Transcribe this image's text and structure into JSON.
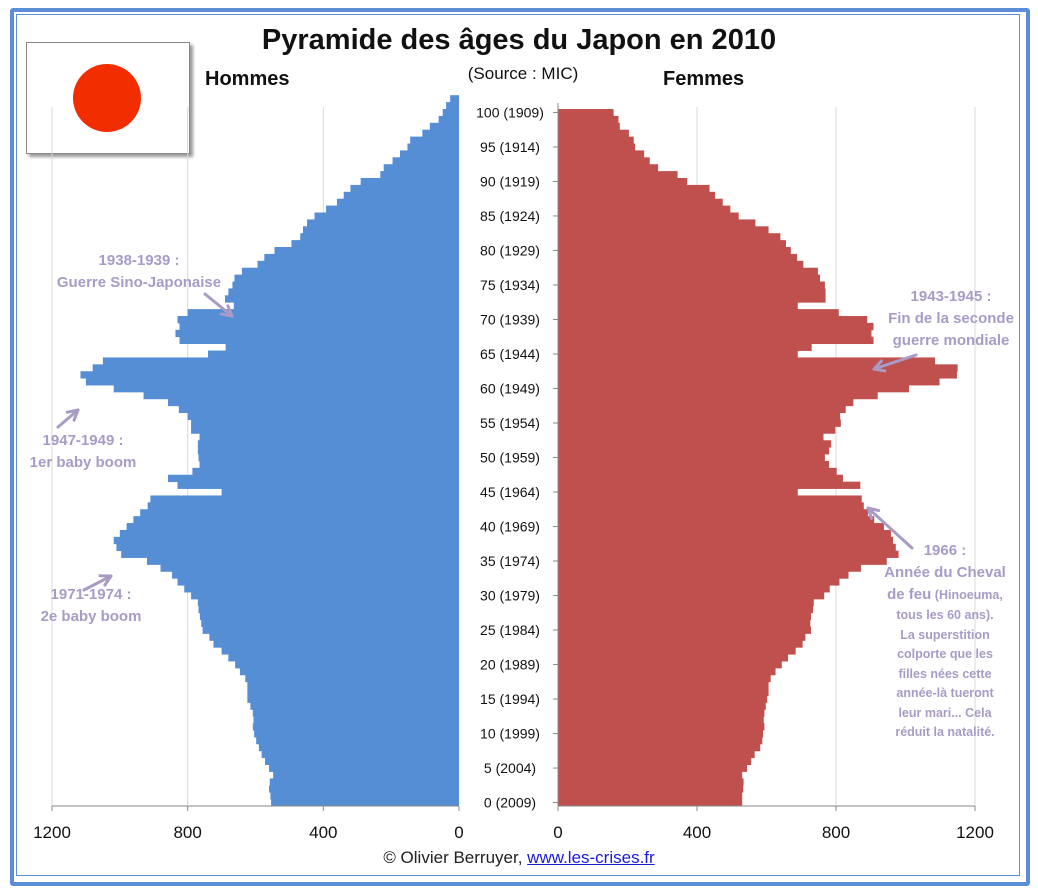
{
  "title": "Pyramide des âges du Japon en 2010",
  "source": "(Source  : MIC)",
  "footer": {
    "copyright": "© Olivier Berruyer,",
    "link": "www.les-crises.fr"
  },
  "colors": {
    "men": "#558ed5",
    "women": "#c0504d",
    "annotation": "#a89bc6",
    "frame": "#5b8ed6",
    "sun": "#f22e00"
  },
  "flag_icon": "japan-flag-icon",
  "annotations": {
    "a1938": {
      "line1": "1938-1939 :",
      "line2": "Guerre Sino-Japonaise"
    },
    "a1947": {
      "line1": "1947-1949 :",
      "line2": "1er baby boom"
    },
    "a1971": {
      "line1": "1971-1974 :",
      "line2": "2e baby boom"
    },
    "a1943": {
      "line1": "1943-1945 :",
      "line2": "Fin de la seconde",
      "line3": "guerre mondiale"
    },
    "a1966": {
      "line1": "1966 :",
      "line2": "Année du Cheval",
      "line3": "de feu",
      "line3b": " (Hinoeuma,",
      "line4": "tous les 60 ans).",
      "line5": "La superstition",
      "line6": "colporte que les",
      "line7": "filles nées cette",
      "line8": "année-là tueront",
      "line9": "leur mari... Cela",
      "line10": "réduit la natalité."
    }
  },
  "chart_data": {
    "type": "bar",
    "orientation": "horizontal-population-pyramid",
    "title": "Pyramide des âges du Japon en 2010",
    "xlim": [
      0,
      1200
    ],
    "x_unit": "thousands",
    "x_ticks": [
      "1200",
      "800",
      "400",
      "0"
    ],
    "x_ticks_right": [
      "0",
      "400",
      "800",
      "1200"
    ],
    "ages": [
      0,
      1,
      2,
      3,
      4,
      5,
      6,
      7,
      8,
      9,
      10,
      11,
      12,
      13,
      14,
      15,
      16,
      17,
      18,
      19,
      20,
      21,
      22,
      23,
      24,
      25,
      26,
      27,
      28,
      29,
      30,
      31,
      32,
      33,
      34,
      35,
      36,
      37,
      38,
      39,
      40,
      41,
      42,
      43,
      44,
      45,
      46,
      47,
      48,
      49,
      50,
      51,
      52,
      53,
      54,
      55,
      56,
      57,
      58,
      59,
      60,
      61,
      62,
      63,
      64,
      65,
      66,
      67,
      68,
      69,
      70,
      71,
      72,
      73,
      74,
      75,
      76,
      77,
      78,
      79,
      80,
      81,
      82,
      83,
      84,
      85,
      86,
      87,
      88,
      89,
      90,
      91,
      92,
      93,
      94,
      95,
      96,
      97,
      98,
      99,
      100
    ],
    "age_labels": [
      "0 (2009)",
      "5 (2004)",
      "10 (1999)",
      "15 (1994)",
      "20 (1989)",
      "25 (1984)",
      "30 (1979)",
      "35 (1974)",
      "40 (1969)",
      "45 (1964)",
      "50 (1959)",
      "55 (1954)",
      "60 (1949)",
      "65 (1944)",
      "70 (1939)",
      "75 (1934)",
      "80 (1929)",
      "85 (1924)",
      "90 (1919)",
      "95 (1914)",
      "100 (1909)"
    ],
    "series": [
      {
        "name": "Hommes",
        "side": "left",
        "values": [
          554,
          556,
          560,
          558,
          548,
          560,
          572,
          582,
          590,
          598,
          604,
          608,
          606,
          608,
          615,
          624,
          624,
          624,
          630,
          646,
          660,
          680,
          700,
          724,
          736,
          756,
          760,
          764,
          768,
          770,
          790,
          810,
          830,
          846,
          880,
          920,
          996,
          1010,
          1018,
          1000,
          980,
          960,
          940,
          918,
          910,
          700,
          830,
          858,
          786,
          765,
          768,
          770,
          770,
          765,
          790,
          790,
          800,
          826,
          858,
          930,
          1018,
          1100,
          1116,
          1080,
          1050,
          740,
          688,
          824,
          836,
          824,
          830,
          800,
          664,
          690,
          680,
          668,
          662,
          640,
          594,
          574,
          544,
          494,
          468,
          460,
          448,
          426,
          392,
          360,
          340,
          320,
          290,
          232,
          222,
          196,
          174,
          152,
          144,
          108,
          86,
          60,
          48,
          38,
          26
        ]
      },
      {
        "name": "Femmes",
        "side": "right",
        "values": [
          530,
          530,
          533,
          534,
          530,
          544,
          556,
          566,
          582,
          588,
          590,
          594,
          592,
          594,
          598,
          602,
          606,
          606,
          612,
          626,
          644,
          662,
          684,
          704,
          712,
          728,
          726,
          728,
          734,
          736,
          766,
          782,
          810,
          836,
          872,
          946,
          980,
          972,
          964,
          958,
          938,
          910,
          892,
          880,
          874,
          690,
          870,
          820,
          802,
          780,
          768,
          780,
          786,
          764,
          798,
          814,
          812,
          828,
          850,
          920,
          1010,
          1098,
          1148,
          1150,
          1085,
          690,
          730,
          908,
          902,
          908,
          890,
          808,
          690,
          770,
          770,
          768,
          754,
          748,
          706,
          688,
          670,
          656,
          640,
          606,
          568,
          520,
          496,
          474,
          452,
          436,
          372,
          344,
          288,
          264,
          248,
          222,
          218,
          204,
          178,
          174,
          160
        ]
      }
    ]
  }
}
